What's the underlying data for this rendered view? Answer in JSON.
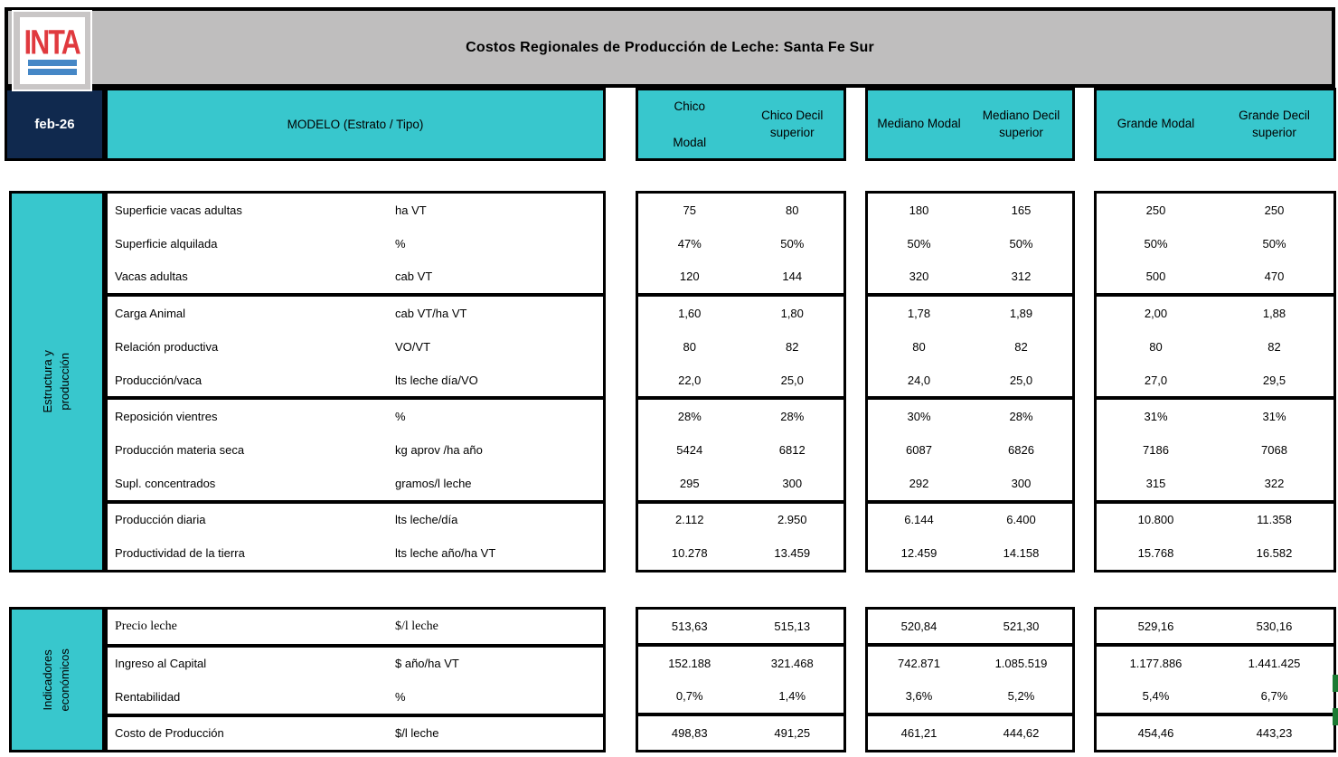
{
  "header": {
    "logo_text": "INTA",
    "title": "Costos Regionales de Producción de Leche: Santa Fe Sur",
    "date": "feb-26",
    "model_label": "MODELO (Estrato / Tipo)",
    "groups": [
      {
        "modal": "Chico\nModal",
        "decil": "Chico Decil\nsuperior"
      },
      {
        "modal": "Mediano Modal",
        "decil": "Mediano Decil\nsuperior"
      },
      {
        "modal": "Grande Modal",
        "decil": "Grande Decil\nsuperior"
      }
    ]
  },
  "colors": {
    "teal": "#38C7CD",
    "navy": "#10294E",
    "titlebar_gray": "#BFBEBE",
    "logo_red": "#E0393E",
    "logo_blue": "#4587C6",
    "marker_green": "#1B7B33"
  },
  "sections": [
    {
      "name": "Estructura y producción",
      "blocks": [
        {
          "rows": [
            {
              "label": "Superficie vacas adultas",
              "unit": "ha VT",
              "values": [
                "75",
                "80",
                "180",
                "165",
                "250",
                "250"
              ]
            },
            {
              "label": "Superficie alquilada",
              "unit": "%",
              "values": [
                "47%",
                "50%",
                "50%",
                "50%",
                "50%",
                "50%"
              ]
            },
            {
              "label": "Vacas adultas",
              "unit": "cab VT",
              "values": [
                "120",
                "144",
                "320",
                "312",
                "500",
                "470"
              ]
            }
          ]
        },
        {
          "rows": [
            {
              "label": "Carga Animal",
              "unit": "cab VT/ha VT",
              "values": [
                "1,60",
                "1,80",
                "1,78",
                "1,89",
                "2,00",
                "1,88"
              ]
            },
            {
              "label": "Relación productiva",
              "unit": "VO/VT",
              "values": [
                "80",
                "82",
                "80",
                "82",
                "80",
                "82"
              ]
            },
            {
              "label": "Producción/vaca",
              "unit": "lts leche día/VO",
              "values": [
                "22,0",
                "25,0",
                "24,0",
                "25,0",
                "27,0",
                "29,5"
              ]
            }
          ]
        },
        {
          "rows": [
            {
              "label": "Reposición vientres",
              "unit": "%",
              "values": [
                "28%",
                "28%",
                "30%",
                "28%",
                "31%",
                "31%"
              ]
            },
            {
              "label": "Producción materia seca",
              "unit": "kg aprov /ha año",
              "values": [
                "5424",
                "6812",
                "6087",
                "6826",
                "7186",
                "7068"
              ]
            },
            {
              "label": "Supl. concentrados",
              "unit": "gramos/l leche",
              "values": [
                "295",
                "300",
                "292",
                "300",
                "315",
                "322"
              ]
            }
          ]
        },
        {
          "rows": [
            {
              "label": "Producción diaria",
              "unit": "lts leche/día",
              "values": [
                "2.112",
                "2.950",
                "6.144",
                "6.400",
                "10.800",
                "11.358"
              ]
            },
            {
              "label": "Productividad de la tierra",
              "unit": "lts leche año/ha VT",
              "values": [
                "10.278",
                "13.459",
                "12.459",
                "14.158",
                "15.768",
                "16.582"
              ]
            }
          ]
        }
      ]
    },
    {
      "name": "Indicadores\neconómicos",
      "blocks": [
        {
          "rows": [
            {
              "label": "Precio leche",
              "unit": "$/l leche",
              "serif": true,
              "values": [
                "513,63",
                "515,13",
                "520,84",
                "521,30",
                "529,16",
                "530,16"
              ]
            }
          ]
        },
        {
          "rows": [
            {
              "label": "Ingreso al Capital",
              "unit": "$ año/ha VT",
              "values": [
                "152.188",
                "321.468",
                "742.871",
                "1.085.519",
                "1.177.886",
                "1.441.425"
              ]
            },
            {
              "label": "Rentabilidad",
              "unit": "%",
              "values": [
                "0,7%",
                "1,4%",
                "3,6%",
                "5,2%",
                "5,4%",
                "6,7%"
              ]
            }
          ]
        },
        {
          "rows": [
            {
              "label": "Costo de Producción",
              "unit": "$/l leche",
              "values": [
                "498,83",
                "491,25",
                "461,21",
                "444,62",
                "454,46",
                "443,23"
              ]
            }
          ]
        }
      ]
    }
  ],
  "markers": {
    "count": 2
  }
}
